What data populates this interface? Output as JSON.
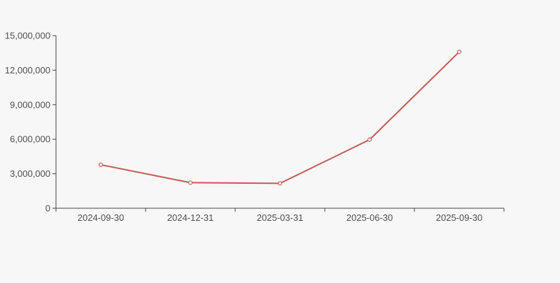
{
  "page": {
    "background_color": "#f7f7f7"
  },
  "chart_data": {
    "type": "line",
    "title": "",
    "xlabel": "",
    "ylabel": "",
    "categories": [
      "2024-09-30",
      "2024-12-31",
      "2025-03-31",
      "2025-06-30",
      "2025-09-30"
    ],
    "values": [
      3780000,
      2220000,
      2160000,
      5960000,
      13590000
    ],
    "ylim": [
      0,
      15000000
    ],
    "ytick_interval": 3000000,
    "ytick_values": [
      0,
      3000000,
      6000000,
      9000000,
      12000000,
      15000000
    ],
    "ytick_labels": [
      "0",
      "3,000,000",
      "6,000,000",
      "9,000,000",
      "12,000,000",
      "15,000,000"
    ],
    "grid": false,
    "legend": false,
    "marker_style": "hollow-circle",
    "colors": {
      "line": "#c65854",
      "marker_fill": "#ffffff",
      "marker_stroke": "#c65854",
      "axis": "#444444",
      "tick_text": "#4d4d4d",
      "background": "#f7f7f7"
    }
  }
}
